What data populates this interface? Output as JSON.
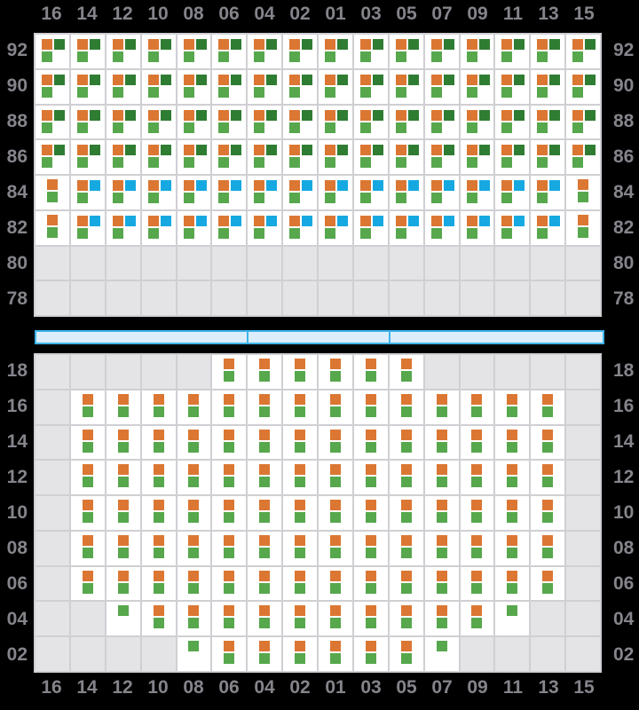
{
  "colors": {
    "orange": "#DB7733",
    "dark_green": "#2F7D32",
    "green": "#57A74D",
    "blue": "#16A9E1",
    "seat_bg": "#FFFFFF",
    "empty_bg": "#E4E4E6",
    "grid_line": "#CFCFD4",
    "label": "#84848B",
    "bar_fill": "#DCEEFB",
    "bar_border": "#3DB4EA",
    "background": "#000000"
  },
  "columns": [
    "16",
    "14",
    "12",
    "10",
    "08",
    "06",
    "04",
    "02",
    "01",
    "03",
    "05",
    "07",
    "09",
    "11",
    "13",
    "15"
  ],
  "cell_types": {
    "T": {
      "squares": [
        {
          "slot": "tl",
          "color": "orange"
        },
        {
          "slot": "tr",
          "color": "dark_green"
        },
        {
          "slot": "bl",
          "color": "green"
        }
      ]
    },
    "B": {
      "squares": [
        {
          "slot": "tl",
          "color": "orange"
        },
        {
          "slot": "tr",
          "color": "blue"
        },
        {
          "slot": "bl",
          "color": "green"
        }
      ]
    },
    "P": {
      "squares": [
        {
          "slot": "ct",
          "color": "orange"
        },
        {
          "slot": "cb",
          "color": "green"
        }
      ]
    },
    "G": {
      "squares": [
        {
          "slot": "ct",
          "color": "green"
        }
      ]
    },
    ".": {
      "squares": []
    }
  },
  "deck_upper": {
    "rows": [
      {
        "label": "92",
        "cells": "TTTTTTTTTTTTTTTT"
      },
      {
        "label": "90",
        "cells": "TTTTTTTTTTTTTTTT"
      },
      {
        "label": "88",
        "cells": "TTTTTTTTTTTTTTTT"
      },
      {
        "label": "86",
        "cells": "TTTTTTTTTTTTTTTT"
      },
      {
        "label": "84",
        "cells": "PBBBBBBBBBBBBBBP"
      },
      {
        "label": "82",
        "cells": "PBBBBBBBBBBBBBBP"
      },
      {
        "label": "80",
        "cells": "................"
      },
      {
        "label": "78",
        "cells": "................"
      }
    ]
  },
  "divider_bar": {
    "divider_after_column_index": [
      5,
      9
    ]
  },
  "deck_lower": {
    "rows": [
      {
        "label": "18",
        "cells": ".....PPPPPP....."
      },
      {
        "label": "16",
        "cells": ".PPPPPPPPPPPPPP."
      },
      {
        "label": "14",
        "cells": ".PPPPPPPPPPPPPP."
      },
      {
        "label": "12",
        "cells": ".PPPPPPPPPPPPPP."
      },
      {
        "label": "10",
        "cells": ".PPPPPPPPPPPPPP."
      },
      {
        "label": "08",
        "cells": ".PPPPPPPPPPPPPP."
      },
      {
        "label": "06",
        "cells": ".PPPPPPPPPPPPPP."
      },
      {
        "label": "04",
        "cells": "..GPPPPPPPPPPG.."
      },
      {
        "label": "02",
        "cells": "....GPPPPPPG...."
      }
    ]
  }
}
